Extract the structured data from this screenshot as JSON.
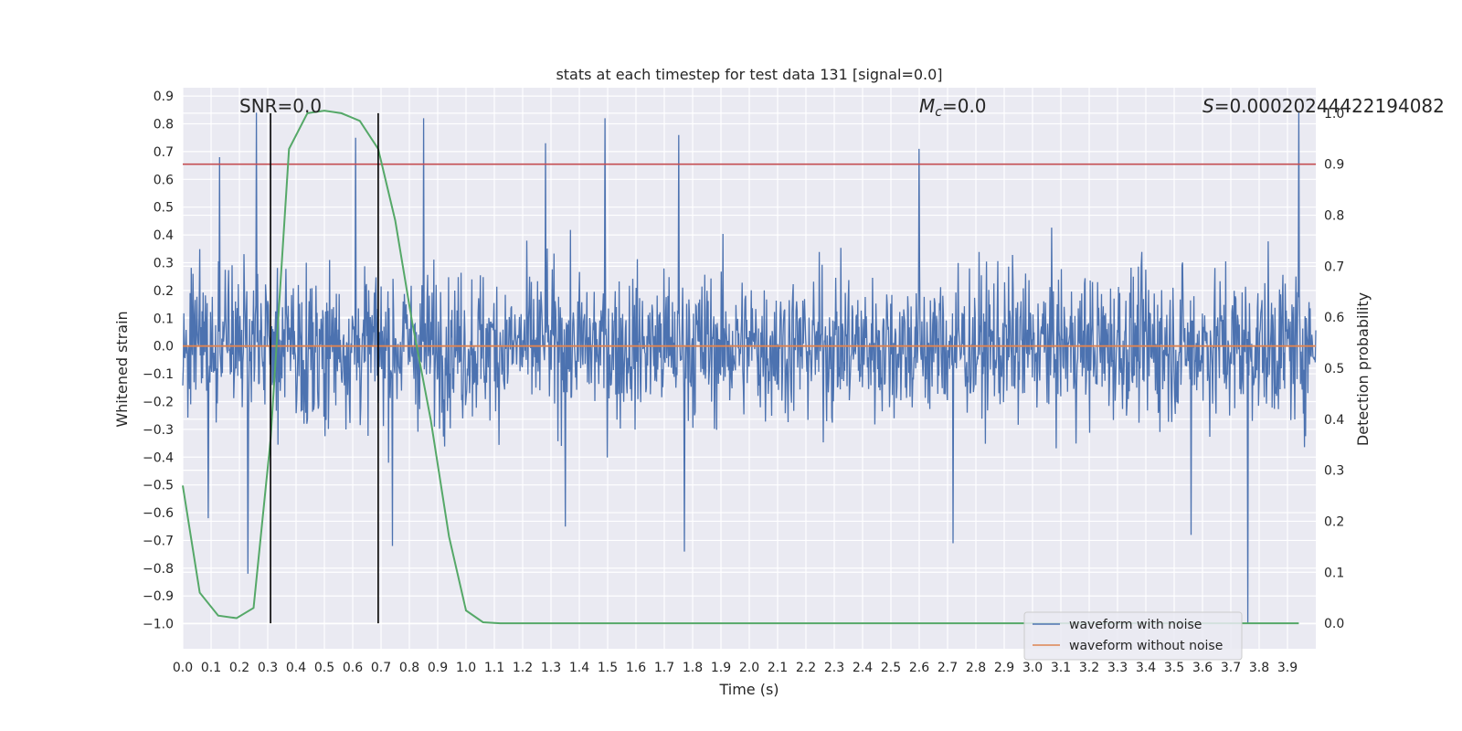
{
  "chart_data": {
    "type": "line",
    "title": "stats at each timestep for test data 131 [signal=0.0]",
    "xlabel": "Time (s)",
    "ylabel": "Whitened strain",
    "y2label": "Detection probability",
    "xlim": [
      0.0,
      4.0
    ],
    "ylim": [
      -1.09,
      0.93
    ],
    "y2lim": [
      -0.05,
      1.05
    ],
    "x_ticks": [
      "0.0",
      "0.1",
      "0.2",
      "0.3",
      "0.4",
      "0.5",
      "0.6",
      "0.7",
      "0.8",
      "0.9",
      "1.0",
      "1.1",
      "1.2",
      "1.3",
      "1.4",
      "1.5",
      "1.6",
      "1.7",
      "1.8",
      "1.9",
      "2.0",
      "2.1",
      "2.2",
      "2.3",
      "2.4",
      "2.5",
      "2.6",
      "2.7",
      "2.8",
      "2.9",
      "3.0",
      "3.1",
      "3.2",
      "3.3",
      "3.4",
      "3.5",
      "3.6",
      "3.7",
      "3.8",
      "3.9"
    ],
    "y_ticks": [
      "0.9",
      "0.8",
      "0.7",
      "0.6",
      "0.5",
      "0.4",
      "0.3",
      "0.2",
      "0.1",
      "0.0",
      "−0.1",
      "−0.2",
      "−0.3",
      "−0.4",
      "−0.5",
      "−0.6",
      "−0.7",
      "−0.8",
      "−0.9",
      "−1.0"
    ],
    "y2_ticks": [
      "1.0",
      "0.9",
      "0.8",
      "0.7",
      "0.6",
      "0.5",
      "0.4",
      "0.3",
      "0.2",
      "0.1",
      "0.0"
    ],
    "grid": true,
    "legend_position": "lower-right",
    "annotations": {
      "snr": "SNR=0.0",
      "mc_sym": "M",
      "mc_sub": "c",
      "mc_val": "=0.0",
      "s_sym": "S",
      "s_val": "=0.00020244422194082"
    },
    "series": [
      {
        "name": "waveform with noise",
        "color": "#4c72b0",
        "axis": "left",
        "sample_count": 2000,
        "amplitude_typical": 0.3,
        "peaks": [
          {
            "x": 0.26,
            "y": 0.84
          },
          {
            "x": 0.85,
            "y": 0.82
          },
          {
            "x": 1.49,
            "y": 0.82
          },
          {
            "x": 3.94,
            "y": 0.84
          },
          {
            "x": 0.61,
            "y": 0.75
          },
          {
            "x": 1.75,
            "y": 0.76
          },
          {
            "x": 2.6,
            "y": 0.71
          },
          {
            "x": 1.28,
            "y": 0.73
          },
          {
            "x": 0.13,
            "y": 0.68
          },
          {
            "x": 0.23,
            "y": -0.82
          },
          {
            "x": 1.77,
            "y": -0.74
          },
          {
            "x": 2.72,
            "y": -0.71
          },
          {
            "x": 3.76,
            "y": -1.0
          },
          {
            "x": 0.74,
            "y": -0.72
          },
          {
            "x": 0.09,
            "y": -0.62
          },
          {
            "x": 1.35,
            "y": -0.65
          },
          {
            "x": 3.56,
            "y": -0.68
          }
        ]
      },
      {
        "name": "waveform without noise",
        "color": "#dd8452",
        "axis": "left",
        "x": [
          0.0,
          4.0
        ],
        "y": [
          0.0,
          0.0
        ]
      },
      {
        "name": "",
        "color": "#55a868",
        "axis": "right",
        "x": [
          0.0,
          0.06,
          0.125,
          0.19,
          0.25,
          0.31,
          0.375,
          0.44,
          0.5,
          0.56,
          0.625,
          0.69,
          0.75,
          0.81,
          0.875,
          0.94,
          1.0,
          1.06,
          1.12,
          2.0,
          3.0,
          3.94
        ],
        "y": [
          0.27,
          0.06,
          0.015,
          0.01,
          0.03,
          0.36,
          0.93,
          1.0,
          1.005,
          1.0,
          0.985,
          0.93,
          0.79,
          0.59,
          0.4,
          0.17,
          0.025,
          0.002,
          0.0,
          0.0,
          0.0,
          0.0
        ]
      }
    ],
    "threshold_line": {
      "axis": "right",
      "value": 0.9,
      "color": "#c44e52"
    },
    "vertical_lines": [
      0.31,
      0.69
    ]
  }
}
